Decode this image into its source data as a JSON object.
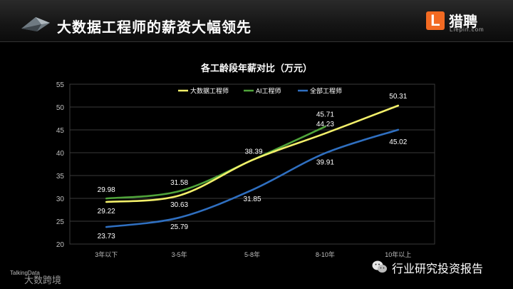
{
  "header": {
    "title": "大数据工程师的薪资大幅领先",
    "brand_name": "猎聘",
    "brand_sub": "Liepin.com",
    "brand_letter": "L"
  },
  "footer": {
    "left_text": "大数跨境",
    "left_small": "TalkingData",
    "wechat_text": "行业研究投资报告"
  },
  "chart_data": {
    "type": "line",
    "title": "各工龄段年薪对比（万元）",
    "categories": [
      "3年以下",
      "3-5年",
      "5-8年",
      "8-10年",
      "10年以上"
    ],
    "ylim": [
      20,
      55
    ],
    "yticks": [
      20,
      25,
      30,
      35,
      40,
      45,
      50,
      55
    ],
    "grid": true,
    "legend_position": "top",
    "series": [
      {
        "name": "大数据工程师",
        "color": "#f2ef6a",
        "values": [
          29.22,
          30.63,
          38.39,
          44.23,
          50.31
        ]
      },
      {
        "name": "AI工程师",
        "color": "#4fa33a",
        "values": [
          29.98,
          31.58,
          38.39,
          45.71,
          null
        ]
      },
      {
        "name": "全部工程师",
        "color": "#2f6fc0",
        "values": [
          23.73,
          25.79,
          31.85,
          39.91,
          45.02
        ]
      }
    ],
    "labels": [
      {
        "text": "29.98",
        "cat": 0,
        "value": 29.98,
        "series": 1
      },
      {
        "text": "29.22",
        "cat": 0,
        "value": 29.22,
        "series": 0
      },
      {
        "text": "23.73",
        "cat": 0,
        "value": 23.73,
        "series": 2
      },
      {
        "text": "31.58",
        "cat": 1,
        "value": 31.58,
        "series": 1
      },
      {
        "text": "30.63",
        "cat": 1,
        "value": 30.63,
        "series": 0
      },
      {
        "text": "25.79",
        "cat": 1,
        "value": 25.79,
        "series": 2
      },
      {
        "text": "38.39",
        "cat": 2,
        "value": 38.39,
        "series": 1
      },
      {
        "text": "31.85",
        "cat": 2,
        "value": 31.85,
        "series": 2
      },
      {
        "text": "45.71",
        "cat": 3,
        "value": 45.71,
        "series": 1
      },
      {
        "text": "44.23",
        "cat": 3,
        "value": 44.23,
        "series": 0
      },
      {
        "text": "39.91",
        "cat": 3,
        "value": 39.91,
        "series": 2
      },
      {
        "text": "50.31",
        "cat": 4,
        "value": 50.31,
        "series": 0
      },
      {
        "text": "45.02",
        "cat": 4,
        "value": 45.02,
        "series": 2
      }
    ]
  }
}
